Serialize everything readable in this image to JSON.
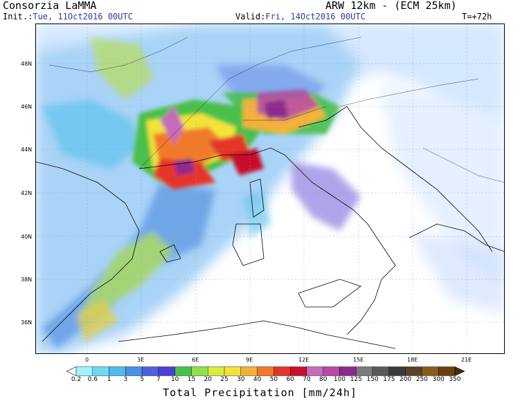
{
  "header": {
    "org": "Consorzia LaMMA",
    "model": "ARW 12km - (ECM 25km)",
    "init_label": "Init.:",
    "init_value": "Tue, 11Oct2016 00UTC",
    "valid_label": "Valid:",
    "valid_value": "Fri, 14Oct2016 00UTC",
    "lead": "T=+72h"
  },
  "lat_labels": [
    "48N",
    "46N",
    "44N",
    "42N",
    "40N",
    "38N",
    "36N"
  ],
  "lon_labels": [
    "0",
    "3E",
    "6E",
    "9E",
    "12E",
    "15E",
    "18E",
    "21E"
  ],
  "colorbar": {
    "title": "Total Precipitation [mm/24h]",
    "levels": [
      "0.2",
      "0.6",
      "1",
      "3",
      "5",
      "7",
      "10",
      "15",
      "20",
      "25",
      "30",
      "40",
      "50",
      "60",
      "70",
      "80",
      "100",
      "125",
      "150",
      "175",
      "200",
      "250",
      "300",
      "350"
    ],
    "colors": [
      "#ffffff",
      "#9ff4ff",
      "#6fd9f5",
      "#52b8f0",
      "#4a8fe6",
      "#4e5fe0",
      "#4d3fd6",
      "#48c04a",
      "#8fe04a",
      "#d9ec3a",
      "#f2e33a",
      "#f2b23a",
      "#f07a2a",
      "#e5352a",
      "#c8102a",
      "#c46cbc",
      "#b54aa8",
      "#8d2a8e",
      "#7a7a7a",
      "#5a5a5a",
      "#3a3a3a",
      "#5a4226",
      "#8b5a1e",
      "#6b3e12",
      "#4a2a0a"
    ]
  }
}
